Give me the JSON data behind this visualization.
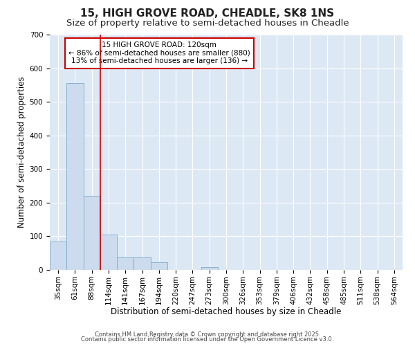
{
  "title_line1": "15, HIGH GROVE ROAD, CHEADLE, SK8 1NS",
  "title_line2": "Size of property relative to semi-detached houses in Cheadle",
  "xlabel": "Distribution of semi-detached houses by size in Cheadle",
  "ylabel": "Number of semi-detached properties",
  "categories": [
    "35sqm",
    "61sqm",
    "88sqm",
    "114sqm",
    "141sqm",
    "167sqm",
    "194sqm",
    "220sqm",
    "247sqm",
    "273sqm",
    "300sqm",
    "326sqm",
    "353sqm",
    "379sqm",
    "406sqm",
    "432sqm",
    "458sqm",
    "485sqm",
    "511sqm",
    "538sqm",
    "564sqm"
  ],
  "values": [
    85,
    555,
    220,
    105,
    37,
    37,
    22,
    0,
    0,
    8,
    0,
    0,
    0,
    0,
    0,
    0,
    0,
    0,
    0,
    0,
    0
  ],
  "bar_color": "#ccdcee",
  "bar_edge_color": "#7aaac8",
  "red_line_index": 3,
  "annotation_title": "15 HIGH GROVE ROAD: 120sqm",
  "annotation_line2": "← 86% of semi-detached houses are smaller (880)",
  "annotation_line3": "13% of semi-detached houses are larger (136) →",
  "annotation_box_color": "#ffffff",
  "annotation_box_edge": "#cc0000",
  "red_line_color": "#cc0000",
  "ylim": [
    0,
    700
  ],
  "yticks": [
    0,
    100,
    200,
    300,
    400,
    500,
    600,
    700
  ],
  "bg_color": "#dde8f5",
  "fig_bg_color": "#ffffff",
  "footer1": "Contains HM Land Registry data © Crown copyright and database right 2025.",
  "footer2": "Contains public sector information licensed under the Open Government Licence v3.0.",
  "title_fontsize": 11,
  "subtitle_fontsize": 9.5,
  "xlabel_fontsize": 8.5,
  "ylabel_fontsize": 8.5,
  "tick_fontsize": 7.5,
  "ann_fontsize": 7.5,
  "footer_fontsize": 6.0
}
